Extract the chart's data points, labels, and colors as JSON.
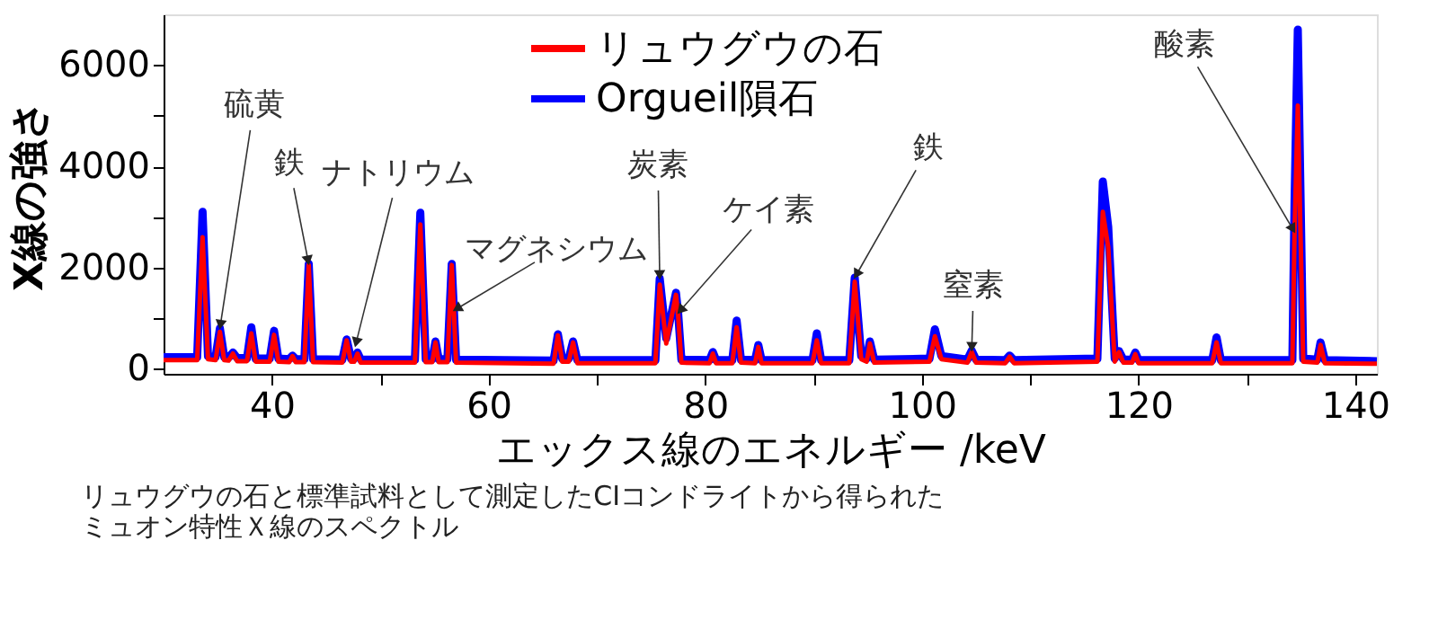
{
  "chart_data": {
    "type": "line",
    "xlabel": "エックス線のエネルギー /keV",
    "ylabel": "X線の強さ",
    "x": [
      30,
      33.1,
      33.6,
      34.1,
      34.8,
      35.2,
      35.6,
      36.0,
      36.4,
      36.8,
      37.7,
      38.1,
      38.5,
      39.8,
      40.2,
      40.6,
      41.6,
      41.9,
      42.2,
      43.0,
      43.4,
      43.8,
      46.5,
      46.9,
      47.3,
      47.6,
      47.9,
      48.2,
      53.2,
      53.7,
      54.2,
      54.8,
      55.1,
      55.4,
      56.2,
      56.6,
      56.8,
      57.0,
      66.0,
      66.4,
      66.8,
      67.4,
      67.8,
      68.2,
      75.4,
      75.8,
      76.4,
      77.3,
      77.5,
      77.8,
      80.4,
      80.7,
      81.0,
      82.5,
      82.9,
      83.3,
      84.6,
      84.9,
      85.2,
      89.9,
      90.3,
      90.7,
      93.3,
      93.8,
      94.4,
      94.9,
      95.2,
      95.6,
      100.7,
      101.2,
      101.8,
      104.2,
      104.6,
      105.0,
      107.7,
      108.1,
      108.5,
      116.2,
      116.7,
      117.2,
      117.8,
      118.2,
      118.6,
      119.4,
      119.7,
      120.0,
      126.8,
      127.2,
      127.6,
      134.2,
      134.4,
      134.7,
      135.2,
      136.5,
      136.8,
      137.2,
      142
    ],
    "series": [
      {
        "name": "リュウグウの石",
        "color": "#ff0000",
        "values": [
          170,
          170,
          2600,
          190,
          170,
          730,
          170,
          160,
          300,
          150,
          150,
          700,
          140,
          140,
          670,
          140,
          130,
          250,
          130,
          130,
          2050,
          130,
          120,
          560,
          140,
          140,
          300,
          120,
          120,
          2850,
          130,
          130,
          520,
          130,
          130,
          2050,
          1130,
          120,
          100,
          660,
          140,
          140,
          520,
          110,
          110,
          1660,
          500,
          1460,
          1050,
          120,
          110,
          300,
          110,
          110,
          820,
          120,
          110,
          430,
          110,
          110,
          560,
          110,
          110,
          1720,
          190,
          140,
          500,
          120,
          140,
          640,
          190,
          120,
          330,
          120,
          110,
          240,
          110,
          140,
          3100,
          2400,
          140,
          330,
          120,
          120,
          290,
          110,
          110,
          520,
          110,
          110,
          2700,
          5200,
          140,
          120,
          470,
          110,
          100
        ]
      },
      {
        "name": "Orgueil隕石",
        "color": "#0000ff",
        "values": [
          230,
          230,
          3100,
          250,
          230,
          800,
          230,
          220,
          320,
          210,
          210,
          820,
          200,
          200,
          750,
          200,
          190,
          260,
          190,
          190,
          2070,
          190,
          180,
          580,
          200,
          200,
          320,
          180,
          180,
          3080,
          190,
          190,
          540,
          190,
          190,
          2070,
          1150,
          180,
          160,
          680,
          200,
          200,
          540,
          170,
          170,
          1780,
          600,
          1500,
          1100,
          180,
          170,
          330,
          170,
          170,
          950,
          180,
          170,
          470,
          170,
          170,
          700,
          170,
          170,
          1800,
          250,
          200,
          540,
          180,
          200,
          780,
          250,
          180,
          360,
          180,
          170,
          260,
          170,
          200,
          3700,
          2800,
          200,
          350,
          180,
          180,
          320,
          170,
          170,
          620,
          170,
          170,
          3300,
          6700,
          200,
          180,
          520,
          170,
          150
        ]
      }
    ],
    "xlim": [
      30,
      142
    ],
    "ylim": [
      -100,
      7000
    ],
    "xticks": [
      40,
      {
        "value": 50,
        "label": null
      },
      60,
      {
        "value": 70,
        "label": null
      },
      80,
      {
        "value": 90,
        "label": null
      },
      100,
      {
        "value": 110,
        "label": null
      },
      120,
      {
        "value": 130,
        "label": null
      },
      140
    ],
    "yticks": [
      0,
      {
        "value": 1000,
        "label": null
      },
      2000,
      {
        "value": 3000,
        "label": null
      },
      4000,
      {
        "value": 5000,
        "label": null
      },
      6000
    ],
    "legend": "top",
    "annotations": [
      {
        "text": "硫黄",
        "x": 35.2,
        "y": 800
      },
      {
        "text": "鉄",
        "x": 43.4,
        "y": 2070
      },
      {
        "text": "ナトリウム",
        "x": 47.7,
        "y": 450
      },
      {
        "text": "マグネシウム",
        "x": 56.8,
        "y": 1150
      },
      {
        "text": "炭素",
        "x": 75.8,
        "y": 1780
      },
      {
        "text": "ケイ素",
        "x": 77.5,
        "y": 1100
      },
      {
        "text": "鉄",
        "x": 93.8,
        "y": 1800
      },
      {
        "text": "窒素",
        "x": 104.6,
        "y": 360
      },
      {
        "text": "酸素",
        "x": 134.4,
        "y": 2700
      },
      "リュウグウの石と標準試料として測定したCIコンドライトから得られた",
      "ミュオン特性Ｘ線のスペクトル"
    ]
  }
}
